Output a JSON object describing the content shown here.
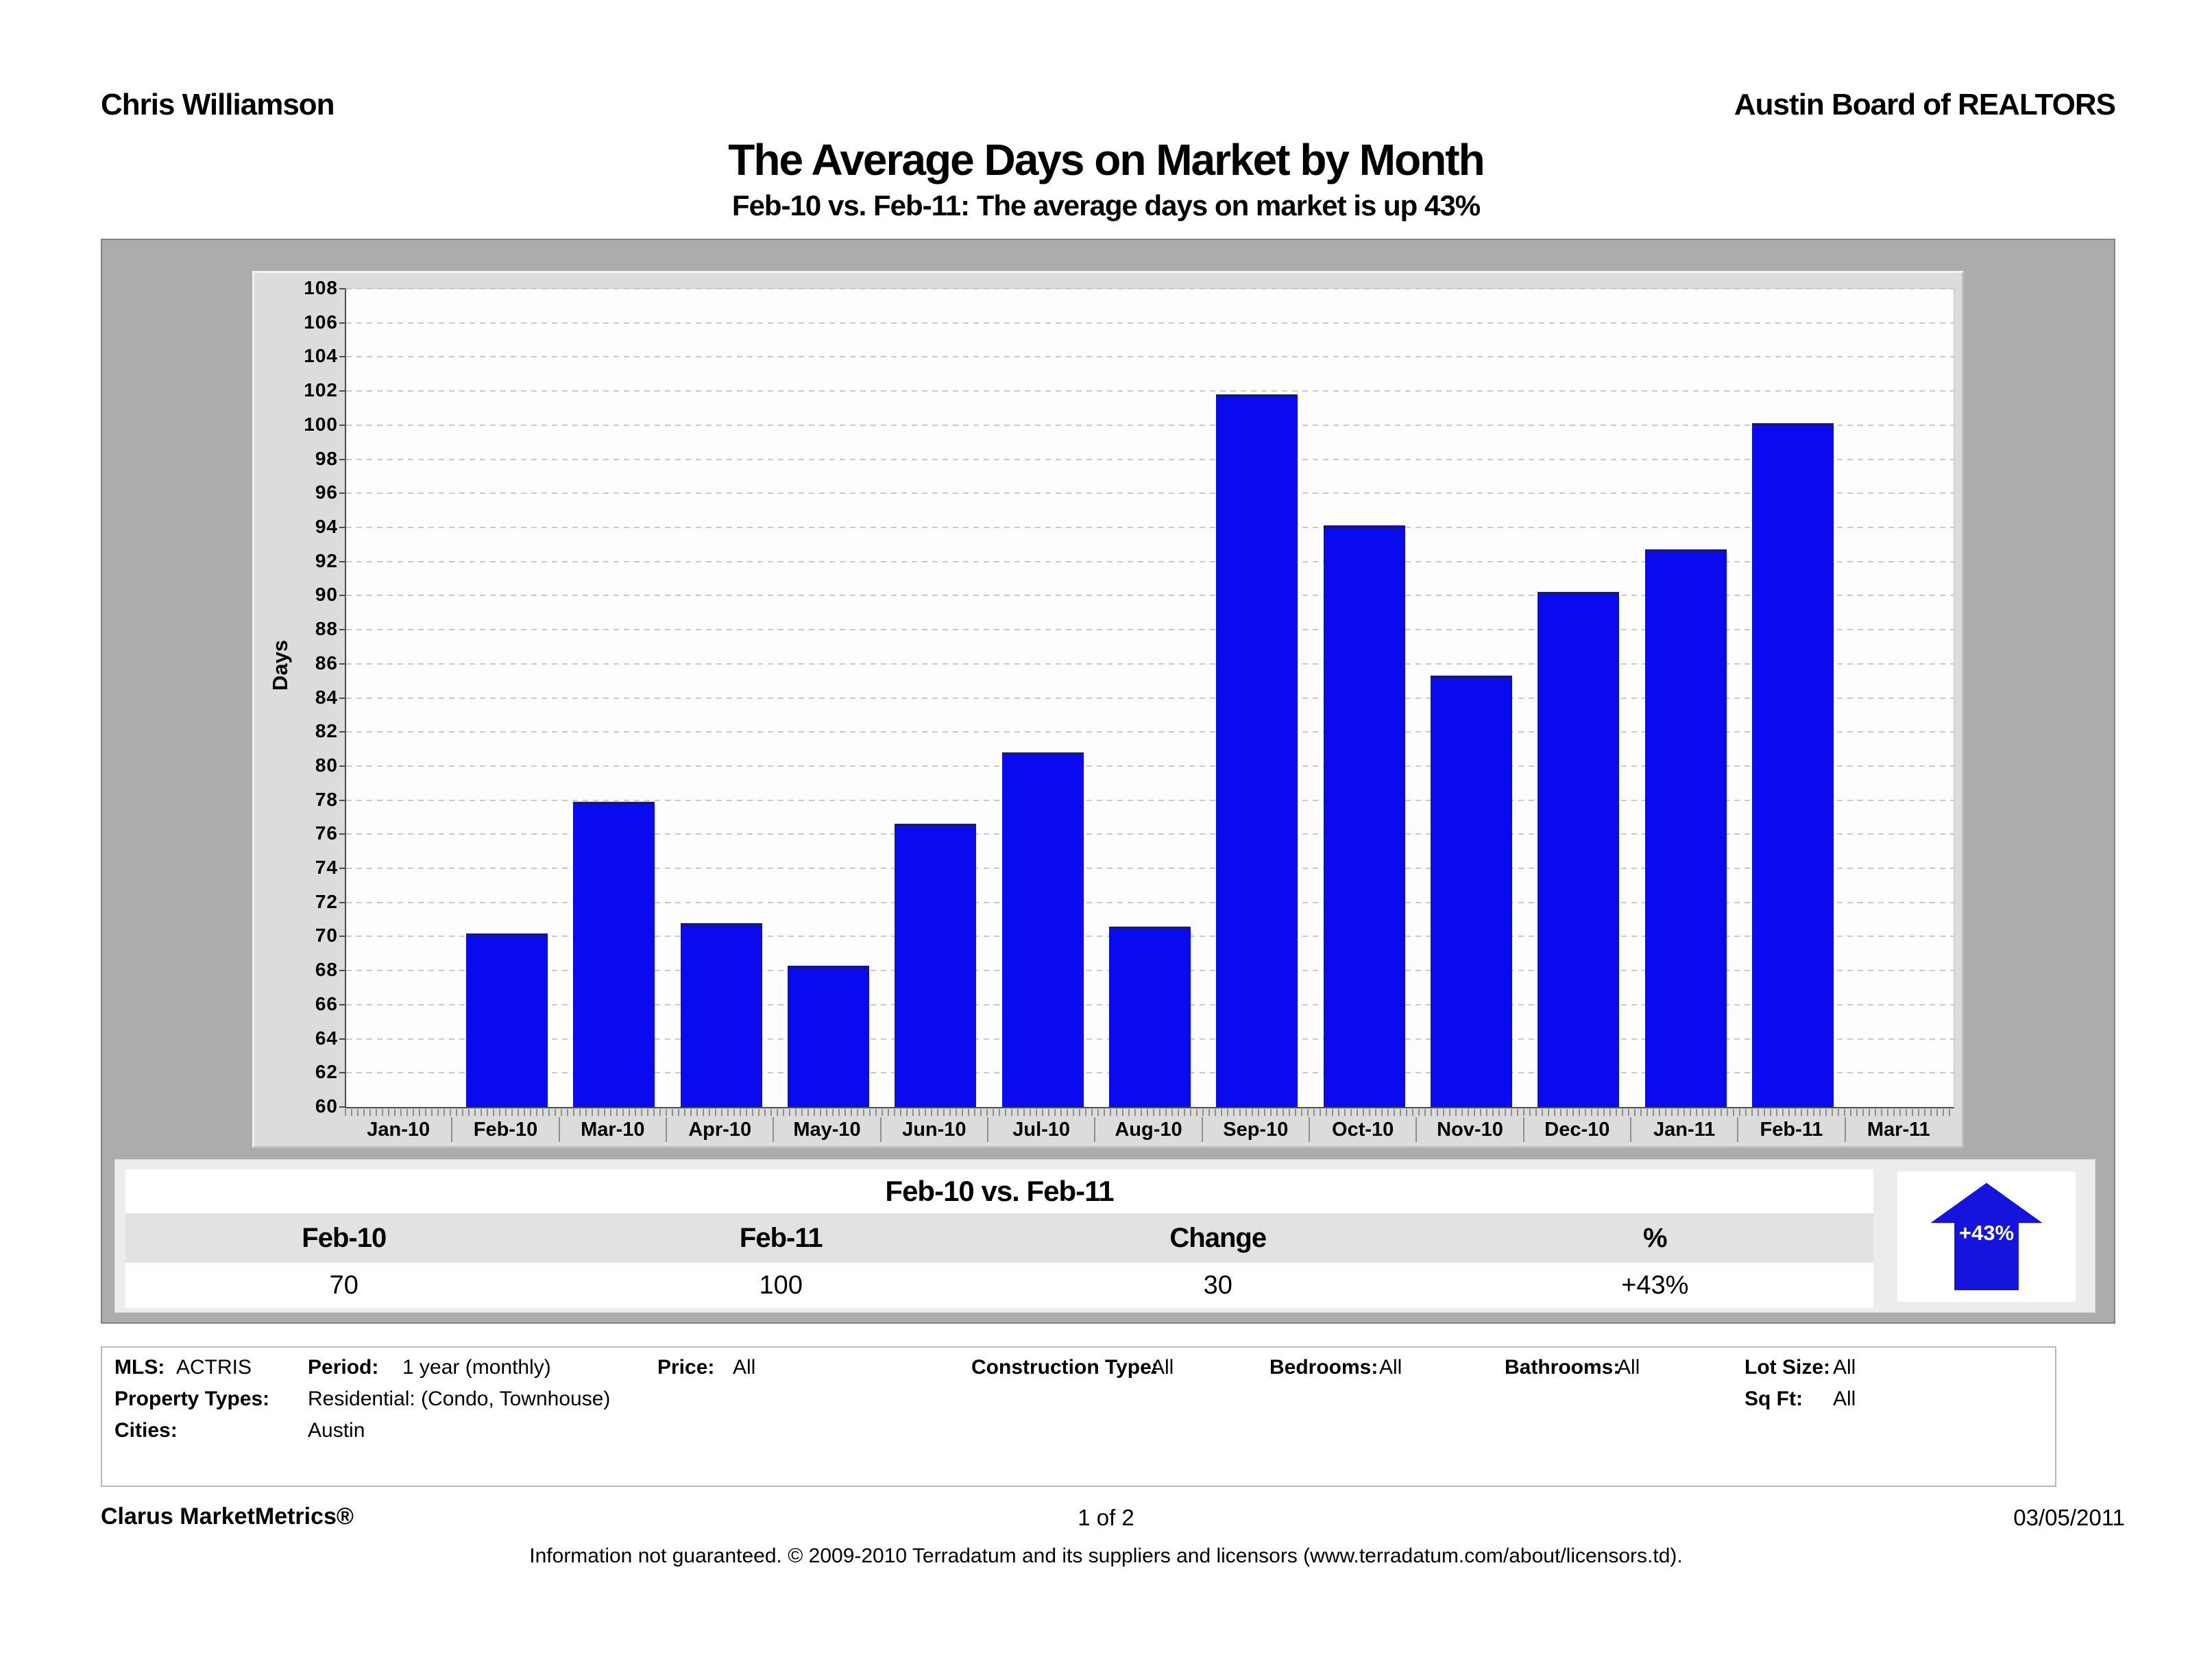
{
  "header": {
    "agent": "Chris Williamson",
    "organization": "Austin Board of REALTORS",
    "title": "The Average Days on Market by Month",
    "subtitle": "Feb-10 vs. Feb-11:  The average days on market is up 43%"
  },
  "chart_data": {
    "type": "bar",
    "title": "The Average Days on Market by Month",
    "xlabel": "",
    "ylabel": "Days",
    "ylim": [
      60,
      108
    ],
    "ytick_step": 2,
    "grid": true,
    "bar_color": "#0a0aee",
    "categories": [
      "Jan-10",
      "Feb-10",
      "Mar-10",
      "Apr-10",
      "May-10",
      "Jun-10",
      "Jul-10",
      "Aug-10",
      "Sep-10",
      "Oct-10",
      "Nov-10",
      "Dec-10",
      "Jan-11",
      "Feb-11",
      "Mar-11"
    ],
    "values": [
      null,
      70.2,
      77.9,
      70.8,
      68.3,
      76.6,
      80.8,
      70.6,
      101.8,
      94.1,
      85.3,
      90.2,
      92.7,
      100.1,
      null
    ]
  },
  "comparison": {
    "title": "Feb-10 vs. Feb-11",
    "columns": [
      "Feb-10",
      "Feb-11",
      "Change",
      "%"
    ],
    "values": [
      "70",
      "100",
      "30",
      "+43%"
    ],
    "arrow_label": "+43%",
    "arrow_color": "#1414dd"
  },
  "filters": {
    "items": [
      {
        "label": "MLS:",
        "value": "ACTRIS"
      },
      {
        "label": "Period:",
        "value": "1 year (monthly)"
      },
      {
        "label": "Price:",
        "value": "All"
      },
      {
        "label": "Construction Type:",
        "value": "All"
      },
      {
        "label": "Bedrooms:",
        "value": "All"
      },
      {
        "label": "Bathrooms:",
        "value": "All"
      },
      {
        "label": "Lot Size:",
        "value": "All"
      },
      {
        "label": "Property Types:",
        "value": "Residential: (Condo, Townhouse)"
      },
      {
        "label": "Sq Ft:",
        "value": "All"
      },
      {
        "label": "Cities:",
        "value": "Austin"
      }
    ]
  },
  "footer": {
    "brand": "Clarus MarketMetrics®",
    "page": "1 of 2",
    "date": "03/05/2011",
    "disclaimer": "Information not guaranteed.  © 2009-2010 Terradatum and its suppliers and licensors (www.terradatum.com/about/licensors.td)."
  }
}
